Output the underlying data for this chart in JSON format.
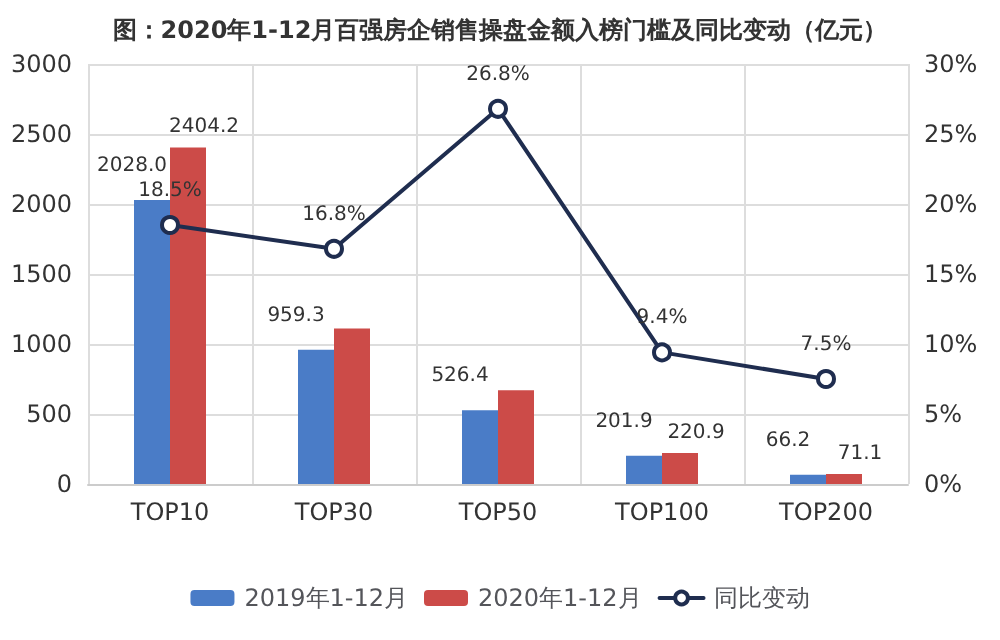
{
  "chart_data": {
    "type": "bar",
    "title": "图：2020年1-12月百强房企销售操盘金额入榜门槛及同比变动（亿元）",
    "categories": [
      "TOP10",
      "TOP30",
      "TOP50",
      "TOP100",
      "TOP200"
    ],
    "series": [
      {
        "name": "2019年1-12月",
        "color": "#4a7cc7",
        "values": [
          2028.0,
          959.3,
          526.4,
          201.9,
          66.2
        ],
        "value_labels": [
          "2028.0",
          "959.3",
          "526.4",
          "201.9",
          "66.2"
        ]
      },
      {
        "name": "2020年1-12月",
        "color": "#cc4b48",
        "values": [
          2404.2,
          1110,
          670,
          220.9,
          71.1
        ],
        "value_labels": [
          "2404.2",
          null,
          null,
          "220.9",
          "71.1"
        ]
      },
      {
        "name": "同比变动",
        "type": "line",
        "axis": "y2",
        "color": "#1f2d4f",
        "values": [
          18.5,
          16.8,
          26.8,
          9.4,
          7.5
        ],
        "value_labels": [
          "18.5%",
          "16.8%",
          "26.8%",
          "9.4%",
          "7.5%"
        ]
      }
    ],
    "ylim": [
      0,
      3000
    ],
    "yticks": [
      0,
      500,
      1000,
      1500,
      2000,
      2500,
      3000
    ],
    "y2lim": [
      0,
      30
    ],
    "y2ticks": [
      {
        "value": 0,
        "label": "0%"
      },
      {
        "value": 5,
        "label": "5%"
      },
      {
        "value": 10,
        "label": "10%"
      },
      {
        "value": 15,
        "label": "15%"
      },
      {
        "value": 20,
        "label": "20%"
      },
      {
        "value": 25,
        "label": "25%"
      },
      {
        "value": 30,
        "label": "30%"
      }
    ],
    "grid": true,
    "legend": "bottom",
    "marker": "circle",
    "line_style": "solid"
  }
}
